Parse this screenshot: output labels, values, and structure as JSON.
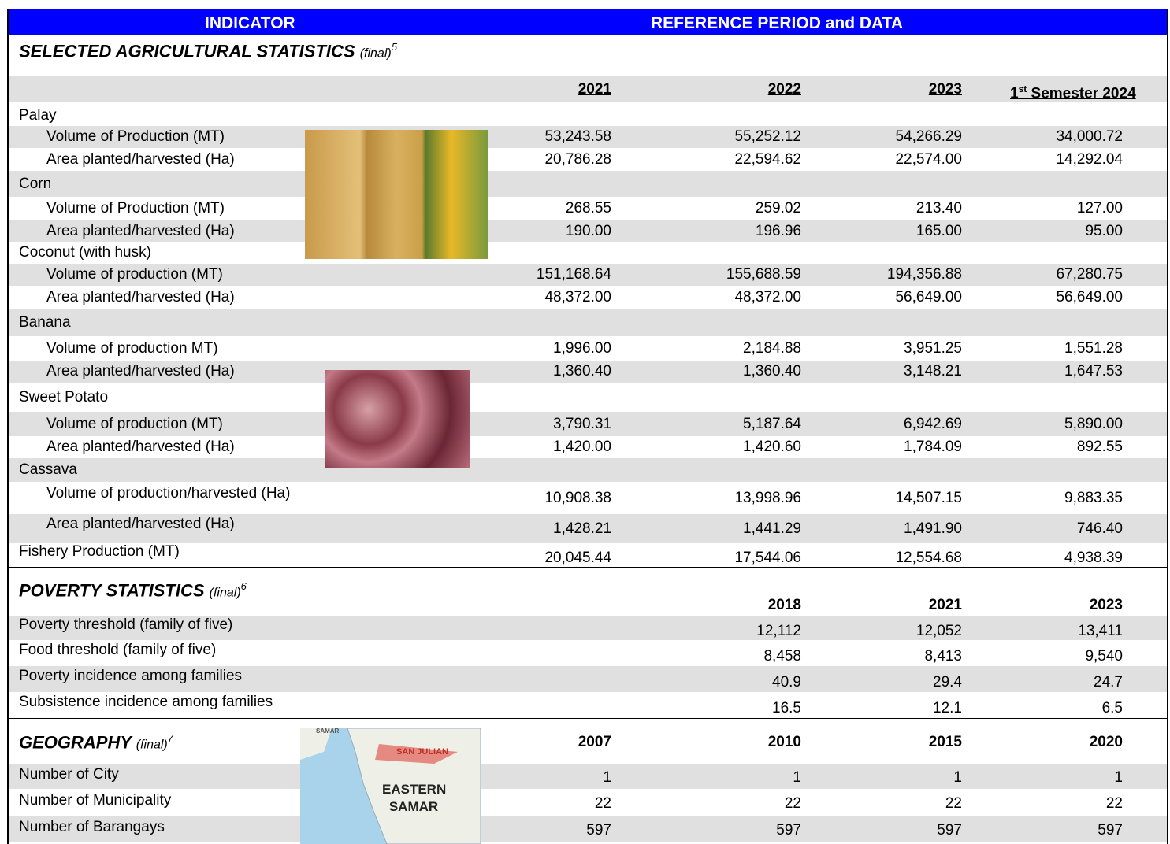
{
  "header": {
    "indicator": "INDICATOR",
    "period": "REFERENCE PERIOD and DATA"
  },
  "agriculture": {
    "title": "SELECTED AGRICULTURAL STATISTICS",
    "qualifier": "(final)",
    "note": "5",
    "years": [
      "2021",
      "2022",
      "2023",
      {
        "num": "1",
        "sup": "st",
        "rest": "Semester 2024"
      }
    ],
    "groups": [
      {
        "name": "Palay",
        "rows": [
          {
            "label": "Volume of Production (MT)",
            "values": [
              "53,243.58",
              "55,252.12",
              "54,266.29",
              "34,000.72"
            ]
          },
          {
            "label": "Area planted/harvested (Ha)",
            "values": [
              "20,786.28",
              "22,594.62",
              "22,574.00",
              "14,292.04"
            ]
          }
        ]
      },
      {
        "name": "Corn",
        "rows": [
          {
            "label": "Volume of Production (MT)",
            "values": [
              "268.55",
              "259.02",
              "213.40",
              "127.00"
            ]
          },
          {
            "label": "Area planted/harvested (Ha)",
            "values": [
              "190.00",
              "196.96",
              "165.00",
              "95.00"
            ]
          }
        ]
      },
      {
        "name": "Coconut (with husk)",
        "rows": [
          {
            "label": "Volume of production (MT)",
            "values": [
              "151,168.64",
              "155,688.59",
              "194,356.88",
              "67,280.75"
            ]
          },
          {
            "label": "Area planted/harvested (Ha)",
            "values": [
              "48,372.00",
              "48,372.00",
              "56,649.00",
              "56,649.00"
            ]
          }
        ]
      },
      {
        "name": "Banana",
        "rows": [
          {
            "label": "Volume of production MT)",
            "values": [
              "1,996.00",
              "2,184.88",
              "3,951.25",
              "1,551.28"
            ]
          },
          {
            "label": "Area planted/harvested (Ha)",
            "values": [
              "1,360.40",
              "1,360.40",
              "3,148.21",
              "1,647.53"
            ]
          }
        ]
      },
      {
        "name": "Sweet Potato",
        "rows": [
          {
            "label": "Volume of production (MT)",
            "values": [
              "3,790.31",
              "5,187.64",
              "6,942.69",
              "5,890.00"
            ]
          },
          {
            "label": "Area planted/harvested (Ha)",
            "values": [
              "1,420.00",
              "1,420.60",
              "1,784.09",
              "892.55"
            ]
          }
        ]
      },
      {
        "name": "Cassava",
        "rows": [
          {
            "label": "Volume of production/harvested (Ha)",
            "values": [
              "10,908.38",
              "13,998.96",
              "14,507.15",
              "9,883.35"
            ]
          },
          {
            "label": "Area planted/harvested (Ha)",
            "values": [
              "1,428.21",
              "1,441.29",
              "1,491.90",
              "746.40"
            ]
          }
        ]
      }
    ],
    "fishery": {
      "label": "Fishery Production (MT)",
      "values": [
        "20,045.44",
        "17,544.06",
        "12,554.68",
        "4,938.39"
      ]
    }
  },
  "poverty": {
    "title": "POVERTY STATISTICS",
    "qualifier": "(final)",
    "note": "6",
    "years": [
      "2018",
      "2021",
      "2023"
    ],
    "rows": [
      {
        "label": "Poverty threshold (family of five)",
        "values": [
          "12,112",
          "12,052",
          "13,411"
        ]
      },
      {
        "label": "Food threshold (family of five)",
        "values": [
          "8,458",
          "8,413",
          "9,540"
        ]
      },
      {
        "label": "Poverty incidence among families",
        "values": [
          "40.9",
          "29.4",
          "24.7"
        ]
      },
      {
        "label": "Subsistence incidence among families",
        "values": [
          "16.5",
          "12.1",
          "6.5"
        ]
      }
    ]
  },
  "geography": {
    "title": "GEOGRAPHY",
    "qualifier": "(final)",
    "note": "7",
    "years": [
      "2007",
      "2010",
      "2015",
      "2020"
    ],
    "map": {
      "top": "SAMAR",
      "town": "SAN JULIAN",
      "province": "EASTERN SAMAR"
    },
    "rows": [
      {
        "label": "Number of City",
        "values": [
          "1",
          "1",
          "1",
          "1"
        ]
      },
      {
        "label": "Number of Municipality",
        "values": [
          "22",
          "22",
          "22",
          "22"
        ]
      },
      {
        "label": "Number of Barangays",
        "values": [
          "597",
          "597",
          "597",
          "597"
        ]
      }
    ]
  }
}
